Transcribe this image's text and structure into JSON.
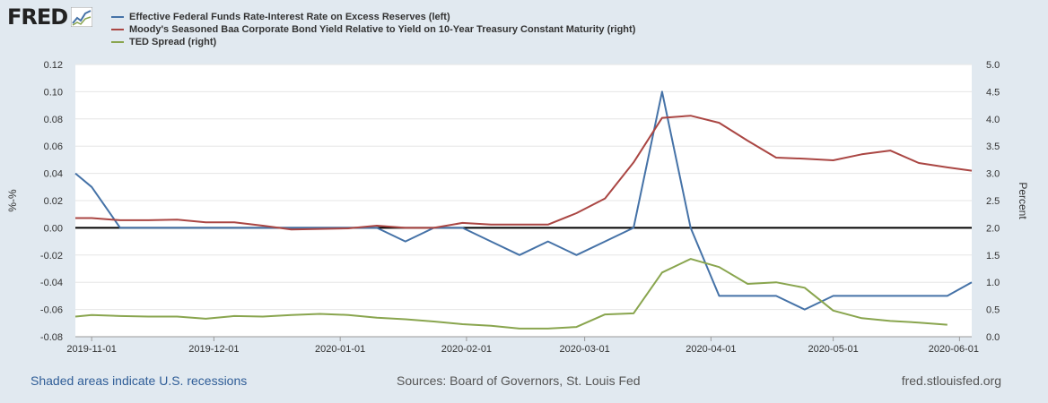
{
  "header": {
    "logo_text": "FRED",
    "logo_icon": "chart-line-icon"
  },
  "footer": {
    "recessions_note": "Shaded areas indicate U.S. recessions",
    "sources": "Sources: Board of Governors, St. Louis Fed",
    "site": "fred.stlouisfed.org"
  },
  "chart_data": {
    "type": "line",
    "title": "",
    "left_axis": {
      "label": "%-%",
      "range": [
        -0.08,
        0.12
      ],
      "ticks": [
        "0.12",
        "0.10",
        "0.08",
        "0.06",
        "0.04",
        "0.02",
        "0.00",
        "-0.02",
        "-0.04",
        "-0.06",
        "-0.08"
      ]
    },
    "right_axis": {
      "label": "Percent",
      "range": [
        0.0,
        5.0
      ],
      "ticks": [
        "5.0",
        "4.5",
        "4.0",
        "3.5",
        "3.0",
        "2.5",
        "2.0",
        "1.5",
        "1.0",
        "0.5",
        "0.0"
      ]
    },
    "x_axis": {
      "range": [
        "2019-10-28",
        "2020-06-04"
      ],
      "tick_dates": [
        "2019-11-01",
        "2019-12-01",
        "2020-01-01",
        "2020-02-01",
        "2020-03-01",
        "2020-04-01",
        "2020-05-01",
        "2020-06-01"
      ],
      "tick_labels": [
        "2019-11-01",
        "2019-12-01",
        "2020-01-01",
        "2020-02-01",
        "2020-03-01",
        "2020-04-01",
        "2020-05-01",
        "2020-06-01"
      ]
    },
    "zero_line": 0.0,
    "grid": "horizontal",
    "legend_placement": "top-left",
    "series": [
      {
        "name": "Effective Federal Funds Rate-Interest Rate on Excess Reserves (left)",
        "axis": "left",
        "color": "#4572a7",
        "points": [
          [
            "2019-10-28",
            0.04
          ],
          [
            "2019-11-01",
            0.03
          ],
          [
            "2019-11-08",
            0.0
          ],
          [
            "2019-11-15",
            0.0
          ],
          [
            "2019-11-22",
            0.0
          ],
          [
            "2019-11-29",
            0.0
          ],
          [
            "2019-12-06",
            0.0
          ],
          [
            "2019-12-13",
            0.0
          ],
          [
            "2019-12-20",
            0.0
          ],
          [
            "2019-12-27",
            0.0
          ],
          [
            "2020-01-03",
            0.0
          ],
          [
            "2020-01-10",
            0.0
          ],
          [
            "2020-01-17",
            -0.01
          ],
          [
            "2020-01-24",
            0.0
          ],
          [
            "2020-01-31",
            0.0
          ],
          [
            "2020-02-07",
            -0.01
          ],
          [
            "2020-02-14",
            -0.02
          ],
          [
            "2020-02-21",
            -0.01
          ],
          [
            "2020-02-28",
            -0.02
          ],
          [
            "2020-03-06",
            -0.01
          ],
          [
            "2020-03-13",
            0.0
          ],
          [
            "2020-03-20",
            0.1
          ],
          [
            "2020-03-27",
            0.0
          ],
          [
            "2020-04-03",
            -0.05
          ],
          [
            "2020-04-10",
            -0.05
          ],
          [
            "2020-04-17",
            -0.05
          ],
          [
            "2020-04-24",
            -0.06
          ],
          [
            "2020-05-01",
            -0.05
          ],
          [
            "2020-05-08",
            -0.05
          ],
          [
            "2020-05-15",
            -0.05
          ],
          [
            "2020-05-22",
            -0.05
          ],
          [
            "2020-05-29",
            -0.05
          ],
          [
            "2020-06-04",
            -0.04
          ]
        ]
      },
      {
        "name": "Moody's Seasoned Baa Corporate Bond Yield Relative to Yield on 10-Year Treasury Constant Maturity (right)",
        "axis": "right",
        "color": "#aa4643",
        "points": [
          [
            "2019-10-28",
            2.18
          ],
          [
            "2019-11-01",
            2.18
          ],
          [
            "2019-11-08",
            2.14
          ],
          [
            "2019-11-15",
            2.14
          ],
          [
            "2019-11-22",
            2.15
          ],
          [
            "2019-11-29",
            2.1
          ],
          [
            "2019-12-06",
            2.1
          ],
          [
            "2019-12-13",
            2.04
          ],
          [
            "2019-12-20",
            1.97
          ],
          [
            "2019-12-27",
            1.98
          ],
          [
            "2020-01-03",
            1.99
          ],
          [
            "2020-01-10",
            2.04
          ],
          [
            "2020-01-17",
            2.0
          ],
          [
            "2020-01-24",
            2.0
          ],
          [
            "2020-01-31",
            2.09
          ],
          [
            "2020-02-07",
            2.06
          ],
          [
            "2020-02-14",
            2.06
          ],
          [
            "2020-02-21",
            2.06
          ],
          [
            "2020-02-28",
            2.27
          ],
          [
            "2020-03-06",
            2.54
          ],
          [
            "2020-03-13",
            3.2
          ],
          [
            "2020-03-20",
            4.02
          ],
          [
            "2020-03-27",
            4.06
          ],
          [
            "2020-04-03",
            3.93
          ],
          [
            "2020-04-10",
            3.6
          ],
          [
            "2020-04-17",
            3.29
          ],
          [
            "2020-04-24",
            3.27
          ],
          [
            "2020-05-01",
            3.24
          ],
          [
            "2020-05-08",
            3.35
          ],
          [
            "2020-05-15",
            3.42
          ],
          [
            "2020-05-22",
            3.19
          ],
          [
            "2020-05-29",
            3.11
          ],
          [
            "2020-06-04",
            3.05
          ]
        ]
      },
      {
        "name": "TED Spread (right)",
        "axis": "right",
        "color": "#89a54e",
        "points": [
          [
            "2019-10-28",
            0.37
          ],
          [
            "2019-11-01",
            0.4
          ],
          [
            "2019-11-08",
            0.38
          ],
          [
            "2019-11-15",
            0.37
          ],
          [
            "2019-11-22",
            0.37
          ],
          [
            "2019-11-29",
            0.33
          ],
          [
            "2019-12-06",
            0.38
          ],
          [
            "2019-12-13",
            0.37
          ],
          [
            "2019-12-20",
            0.4
          ],
          [
            "2019-12-27",
            0.42
          ],
          [
            "2020-01-03",
            0.4
          ],
          [
            "2020-01-10",
            0.35
          ],
          [
            "2020-01-17",
            0.32
          ],
          [
            "2020-01-24",
            0.28
          ],
          [
            "2020-01-31",
            0.23
          ],
          [
            "2020-02-07",
            0.2
          ],
          [
            "2020-02-14",
            0.15
          ],
          [
            "2020-02-21",
            0.15
          ],
          [
            "2020-02-28",
            0.18
          ],
          [
            "2020-03-06",
            0.41
          ],
          [
            "2020-03-13",
            0.43
          ],
          [
            "2020-03-20",
            1.18
          ],
          [
            "2020-03-27",
            1.43
          ],
          [
            "2020-04-03",
            1.28
          ],
          [
            "2020-04-10",
            0.97
          ],
          [
            "2020-04-17",
            1.0
          ],
          [
            "2020-04-24",
            0.9
          ],
          [
            "2020-05-01",
            0.48
          ],
          [
            "2020-05-08",
            0.34
          ],
          [
            "2020-05-15",
            0.29
          ],
          [
            "2020-05-22",
            0.26
          ],
          [
            "2020-05-29",
            0.22
          ]
        ]
      }
    ]
  }
}
